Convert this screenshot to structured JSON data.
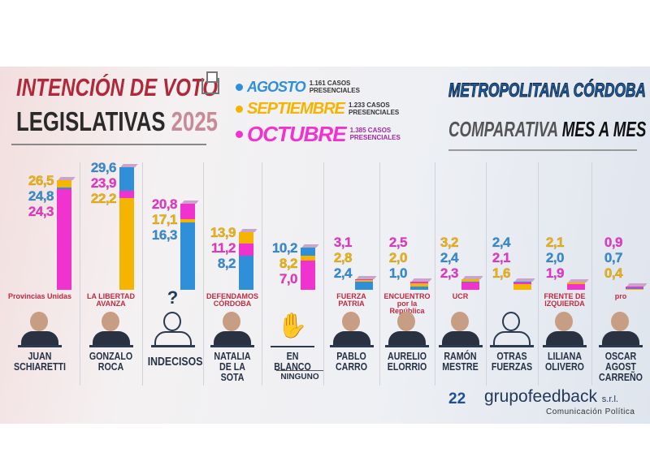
{
  "header": {
    "title_line1": "INTENCIÓN DE VOTO",
    "title_line2": "LEGISLATIVAS",
    "year": "2025",
    "region": "METROPOLITANA CÓRDOBA",
    "subtitle_a": "COMPARATIVA",
    "subtitle_b": "MES A MES"
  },
  "legend": [
    {
      "month": "AGOSTO",
      "cases": "1.161 CASOS PRESENCIALES",
      "color": "#2f8fd8"
    },
    {
      "month": "SEPTIEMBRE",
      "cases": "1.233 CASOS PRESENCIALES",
      "color": "#f5b400"
    },
    {
      "month": "OCTUBRE",
      "cases": "1.385 CASOS PRESENCIALES",
      "color": "#f032cf"
    }
  ],
  "chart_data": {
    "type": "bar",
    "series": [
      {
        "name": "AGOSTO",
        "values": [
          24.8,
          29.6,
          16.3,
          8.2,
          10.2,
          2.4,
          1.0,
          2.4,
          2.4,
          2.0,
          0.7
        ]
      },
      {
        "name": "SEPTIEMBRE",
        "values": [
          26.5,
          22.2,
          17.1,
          13.9,
          8.2,
          2.8,
          2.0,
          3.2,
          1.6,
          2.1,
          0.4
        ]
      },
      {
        "name": "OCTUBRE",
        "values": [
          24.3,
          23.9,
          20.8,
          11.2,
          7.0,
          3.1,
          2.5,
          2.3,
          2.1,
          1.9,
          0.9
        ]
      }
    ],
    "categories": [
      "JUAN SCHIARETTI",
      "GONZALO ROCA",
      "INDECISOS",
      "NATALIA DE LA SOTA",
      "EN BLANCO",
      "PABLO CARRO",
      "AURELIO ELORRIO",
      "RAMÓN MESTRE",
      "OTRAS FUERZAS",
      "LILIANA OLIVERO",
      "OSCAR AGOST CARREÑO"
    ]
  },
  "candidates": [
    {
      "line1": "JUAN",
      "line2": "SCHIARETTI",
      "party": "Provincias Unidas"
    },
    {
      "line1": "GONZALO",
      "line2": "ROCA",
      "party": "LA LIBERTAD AVANZA"
    },
    {
      "line1": "INDECISOS",
      "line2": "",
      "party": "?"
    },
    {
      "line1": "NATALIA",
      "line2": "DE LA SOTA",
      "party": "DEFENDAMOS CÓRDOBA"
    },
    {
      "line1": "EN BLANCO",
      "line2": "",
      "party": ""
    },
    {
      "line1": "PABLO",
      "line2": "CARRO",
      "party": "FUERZA PATRIA"
    },
    {
      "line1": "AURELIO",
      "line2": "ELORRIO",
      "party": "ENCUENTRO por la República"
    },
    {
      "line1": "RAMÓN",
      "line2": "MESTRE",
      "party": "UCR"
    },
    {
      "line1": "OTRAS",
      "line2": "FUERZAS",
      "party": ""
    },
    {
      "line1": "LILIANA",
      "line2": "OLIVERO",
      "party": "FRENTE DE IZQUIERDA"
    },
    {
      "line1": "OSCAR AGOST",
      "line2": "CARREÑO",
      "party": "pro"
    }
  ],
  "ninguno": "NINGUNO",
  "footer": {
    "badge": "22",
    "brand": "grupofeedback",
    "suffix": "s.r.l.",
    "tagline": "Comunicación Política"
  }
}
